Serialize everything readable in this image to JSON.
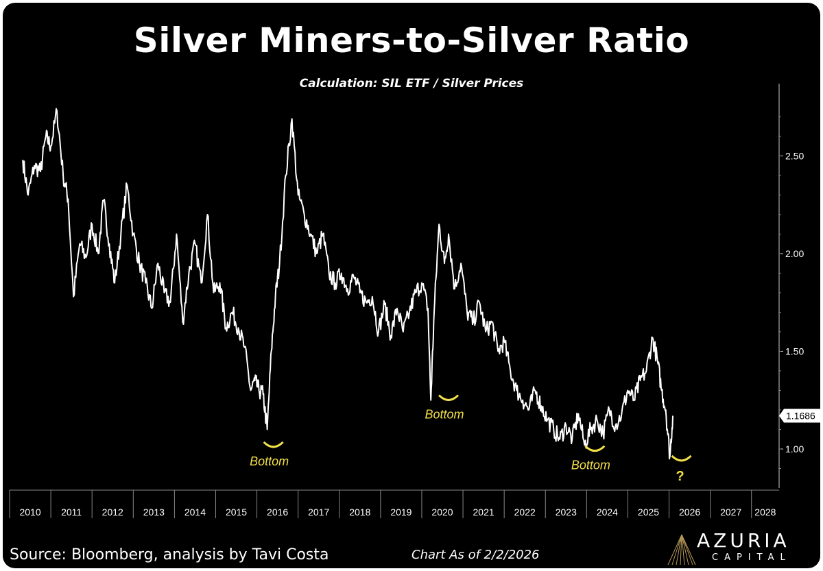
{
  "title": "Silver Miners-to-Silver Ratio",
  "subtitle": "Calculation: SIL ETF / Silver Prices",
  "source": "Source: Bloomberg, analysis by Tavi Costa",
  "as_of": "Chart As of 2/2/2026",
  "logo": {
    "name": "AZURIA",
    "sub": "CAPITAL"
  },
  "colors": {
    "background": "#000000",
    "line": "#ffffff",
    "annotation": "#f2e04a"
  },
  "chart_data": {
    "type": "line",
    "title": "Silver Miners-to-Silver Ratio",
    "subtitle": "Calculation: SIL ETF / Silver Prices",
    "xlabel": "",
    "ylabel": "",
    "xlim": [
      2010.0,
      2028.67
    ],
    "ylim": [
      0.8,
      2.87
    ],
    "x_ticks": [
      "2010",
      "2011",
      "2012",
      "2013",
      "2014",
      "2015",
      "2016",
      "2017",
      "2018",
      "2019",
      "2020",
      "2021",
      "2022",
      "2023",
      "2024",
      "2025",
      "2026",
      "2027",
      "2028"
    ],
    "y_ticks": [
      "1.00",
      "1.50",
      "2.00",
      "2.50"
    ],
    "last_value_label": "1.1686",
    "series": [
      {
        "name": "SIL ETF / Silver Prices",
        "x": [
          2010.32,
          2010.45,
          2010.6,
          2010.75,
          2010.88,
          2011.0,
          2011.15,
          2011.3,
          2011.42,
          2011.55,
          2011.7,
          2011.85,
          2012.0,
          2012.15,
          2012.28,
          2012.42,
          2012.55,
          2012.7,
          2012.85,
          2013.0,
          2013.15,
          2013.3,
          2013.45,
          2013.6,
          2013.75,
          2013.9,
          2014.05,
          2014.2,
          2014.35,
          2014.5,
          2014.65,
          2014.8,
          2014.95,
          2015.1,
          2015.25,
          2015.4,
          2015.55,
          2015.7,
          2015.85,
          2015.95,
          2016.05,
          2016.15,
          2016.25,
          2016.35,
          2016.45,
          2016.55,
          2016.7,
          2016.85,
          2017.0,
          2017.15,
          2017.3,
          2017.45,
          2017.6,
          2017.75,
          2017.9,
          2018.05,
          2018.2,
          2018.35,
          2018.5,
          2018.65,
          2018.8,
          2018.95,
          2019.1,
          2019.25,
          2019.4,
          2019.55,
          2019.7,
          2019.85,
          2020.0,
          2020.15,
          2020.22,
          2020.3,
          2020.42,
          2020.55,
          2020.65,
          2020.8,
          2020.95,
          2021.1,
          2021.25,
          2021.4,
          2021.55,
          2021.7,
          2021.85,
          2022.0,
          2022.15,
          2022.3,
          2022.45,
          2022.6,
          2022.75,
          2022.9,
          2023.05,
          2023.2,
          2023.35,
          2023.5,
          2023.65,
          2023.8,
          2023.95,
          2024.1,
          2024.25,
          2024.4,
          2024.55,
          2024.7,
          2024.85,
          2025.0,
          2025.15,
          2025.3,
          2025.45,
          2025.6,
          2025.72,
          2025.82,
          2025.92,
          2026.02,
          2026.09
        ],
        "values": [
          2.48,
          2.3,
          2.45,
          2.42,
          2.6,
          2.55,
          2.73,
          2.4,
          2.28,
          1.78,
          2.05,
          1.98,
          2.15,
          2.0,
          2.27,
          2.05,
          1.85,
          2.1,
          2.35,
          2.1,
          1.95,
          1.85,
          1.72,
          1.95,
          1.8,
          1.75,
          2.1,
          1.65,
          1.9,
          2.05,
          1.85,
          2.2,
          1.8,
          1.85,
          1.62,
          1.7,
          1.62,
          1.52,
          1.3,
          1.35,
          1.3,
          1.28,
          1.1,
          1.5,
          1.78,
          1.95,
          2.4,
          2.69,
          2.3,
          2.2,
          2.1,
          2.0,
          2.1,
          1.9,
          1.85,
          1.9,
          1.82,
          1.88,
          1.8,
          1.75,
          1.78,
          1.6,
          1.74,
          1.58,
          1.72,
          1.6,
          1.7,
          1.8,
          1.85,
          1.72,
          1.25,
          1.7,
          2.15,
          1.95,
          2.1,
          1.82,
          1.95,
          1.7,
          1.65,
          1.75,
          1.6,
          1.65,
          1.5,
          1.55,
          1.4,
          1.3,
          1.25,
          1.2,
          1.3,
          1.22,
          1.15,
          1.1,
          1.05,
          1.12,
          1.05,
          1.18,
          1.02,
          1.1,
          1.15,
          1.08,
          1.2,
          1.12,
          1.18,
          1.3,
          1.25,
          1.35,
          1.4,
          1.57,
          1.45,
          1.3,
          1.2,
          0.96,
          1.17
        ]
      }
    ],
    "annotations": [
      {
        "label": "Bottom",
        "x": 2016.4,
        "y": 1.0
      },
      {
        "label": "Bottom",
        "x": 2020.65,
        "y": 1.24
      },
      {
        "label": "Bottom",
        "x": 2024.2,
        "y": 0.98
      },
      {
        "label": "?",
        "x": 2026.3,
        "y": 0.93
      }
    ]
  }
}
